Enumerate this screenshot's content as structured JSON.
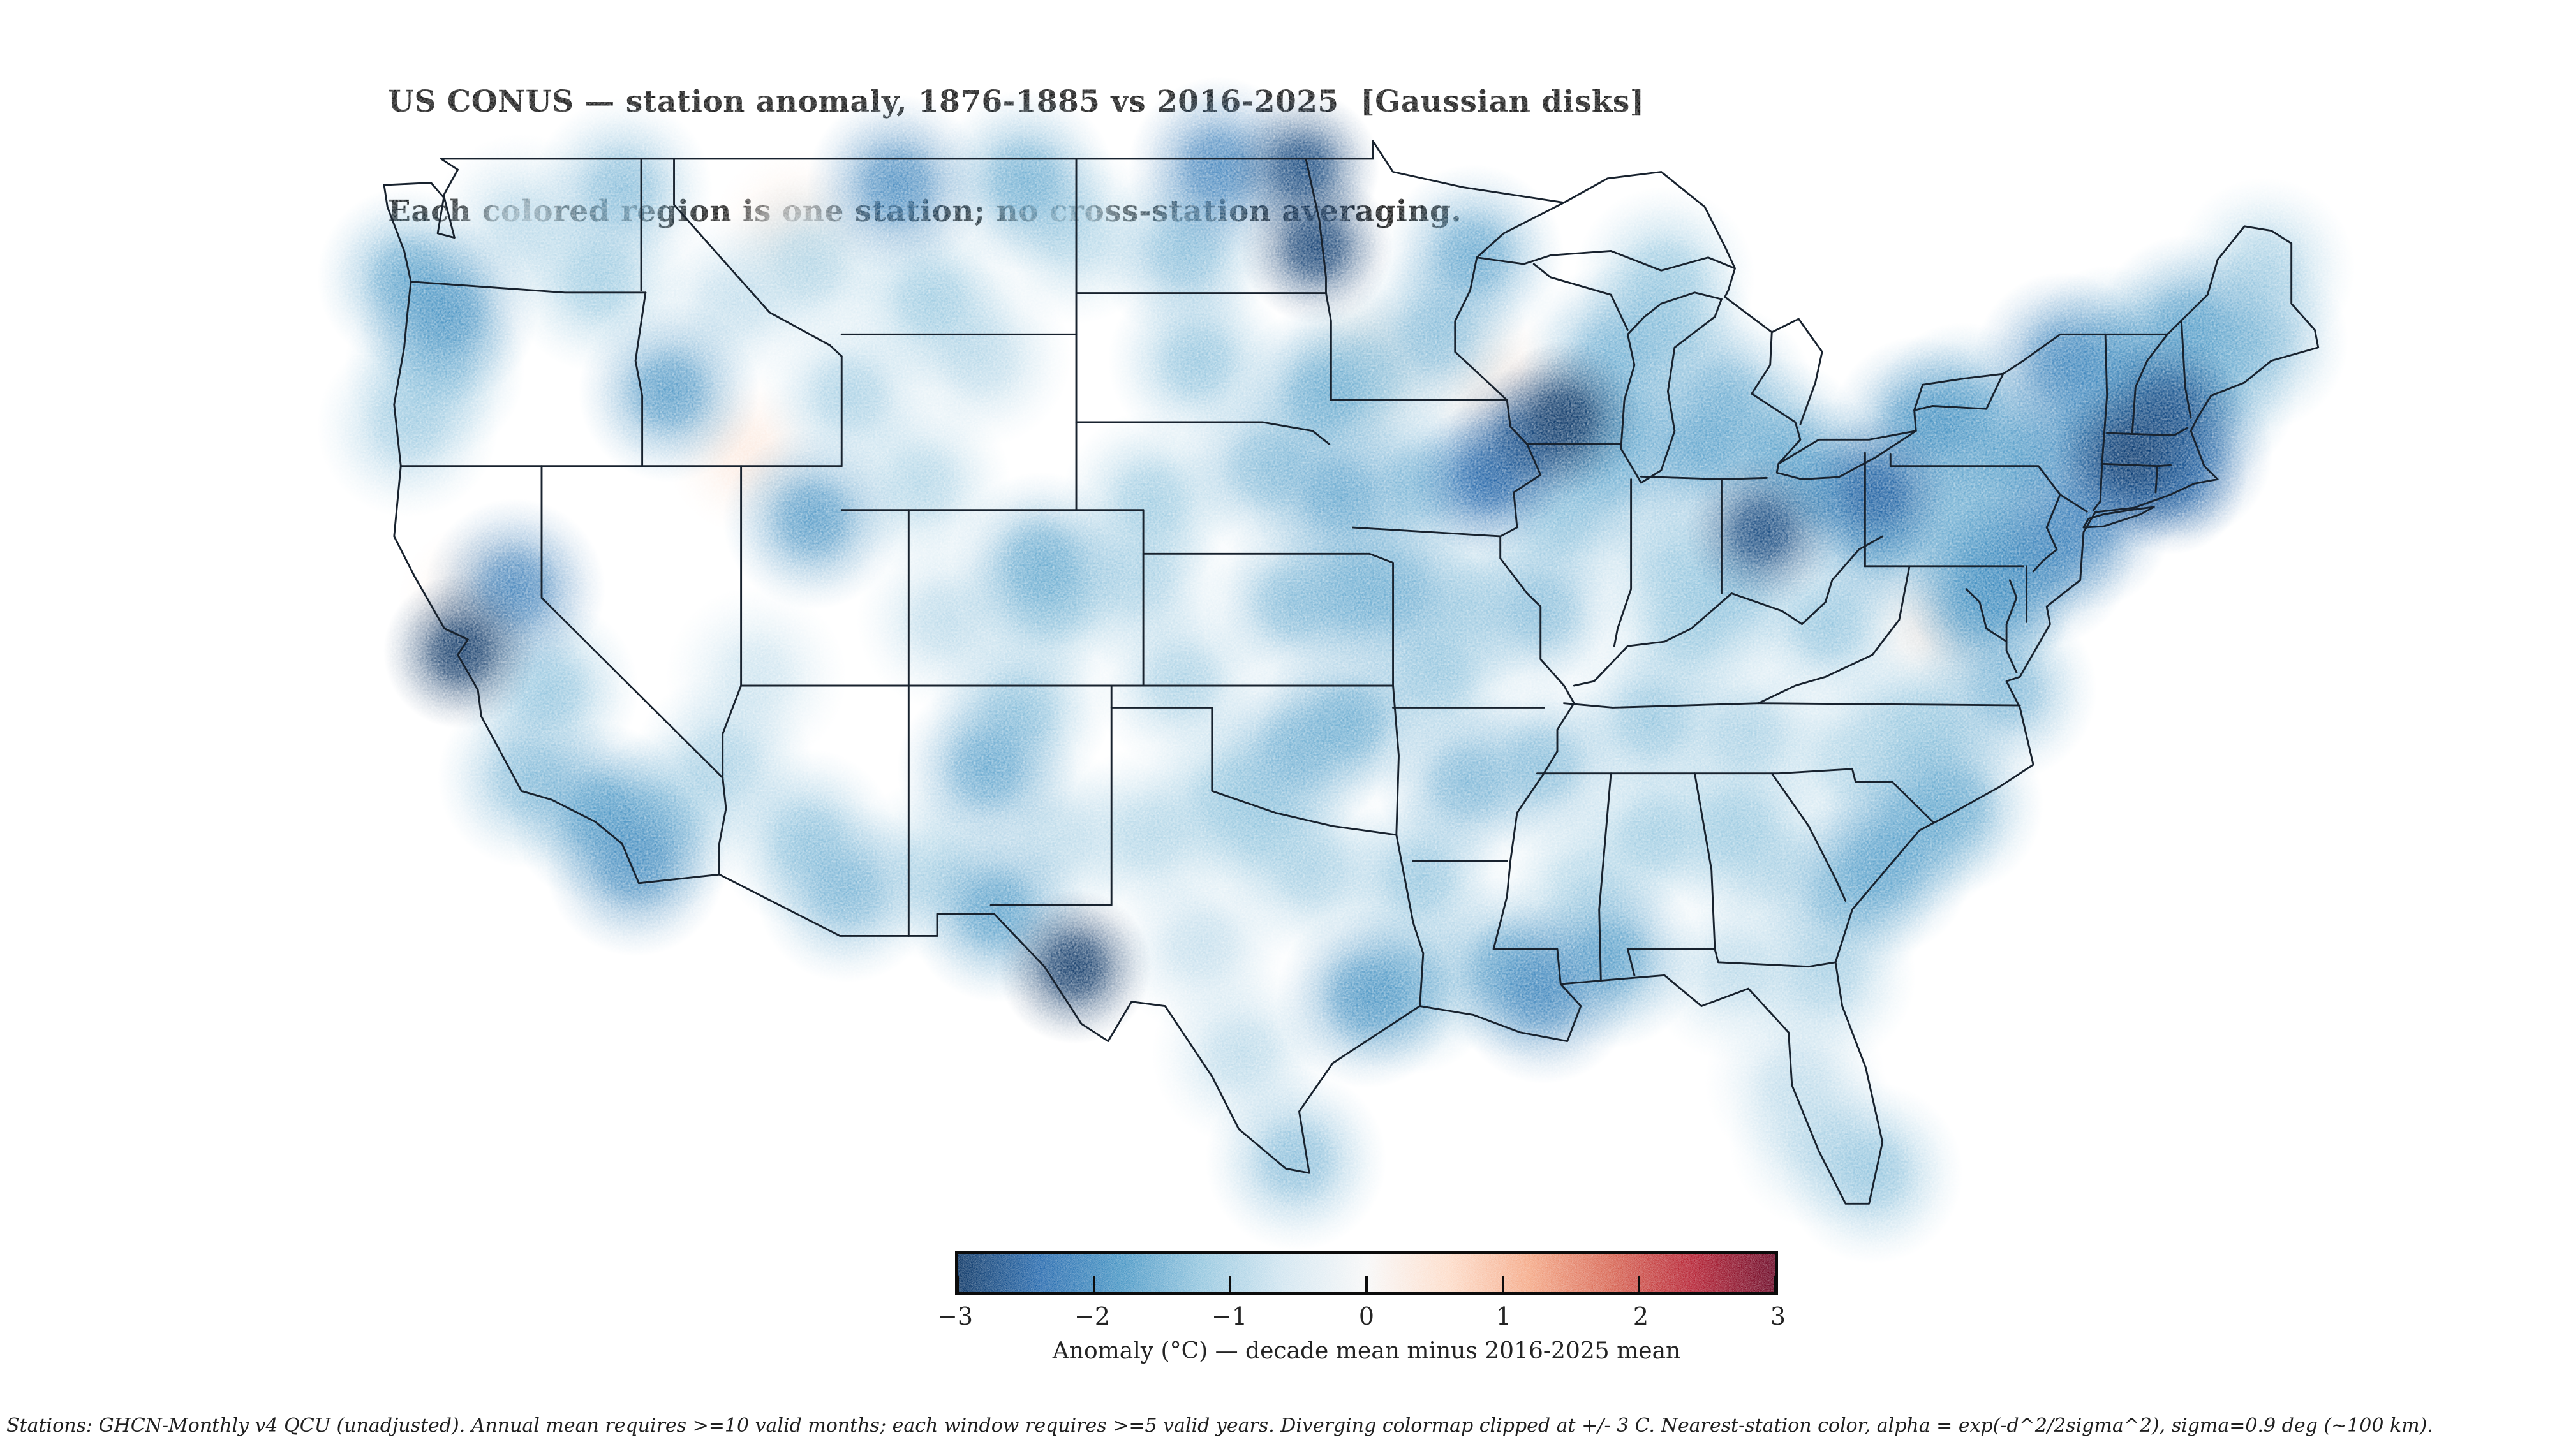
{
  "title": {
    "line1": "US CONUS — station anomaly, 1876-1885 vs 2016-2025  [Gaussian disks]",
    "line2": "Each colored region is one station; no cross-station averaging."
  },
  "colorbar": {
    "label": "Anomaly (°C) — decade mean minus 2016-2025 mean",
    "tick_values": [
      -3,
      -2,
      -1,
      0,
      1,
      2,
      3
    ],
    "tick_labels": [
      "−3",
      "−2",
      "−1",
      "0",
      "1",
      "2",
      "3"
    ],
    "vmin": -3,
    "vmax": 3,
    "gradient_stops": [
      "#053061",
      "#2166ac",
      "#4393c3",
      "#92c5de",
      "#d1e5f0",
      "#f7f7f7",
      "#fddbc7",
      "#f4a582",
      "#d6604d",
      "#b2182b",
      "#67001f"
    ],
    "border_color": "#0c0c0c"
  },
  "footnote": {
    "text": "Stations: GHCN-Monthly v4 QCU (unadjusted). Annual mean requires >=10 valid months; each window requires >=5 valid years. Diverging colormap clipped at +/- 3 C. Nearest-station color, alpha = exp(-d^2/2sigma^2), sigma=0.9 deg (~100 km)."
  },
  "chart_data": {
    "type": "heatmap",
    "subtype": "geo-station-gaussian-disks",
    "region": "US CONUS",
    "title": "US CONUS — station anomaly, 1876-1885 vs 2016-2025 [Gaussian disks]",
    "baseline_period": "1876-1885",
    "reference_period": "2016-2025",
    "units": "°C",
    "colormap": "RdBu diverging, clipped at +/- 3 C",
    "sigma_deg": 0.9,
    "legend_position": "bottom-center",
    "outline_color": "#18222e",
    "stations_format": [
      "lon",
      "lat",
      "anomaly_c"
    ],
    "stations": [
      [
        -124.0,
        46.3,
        -1.6
      ],
      [
        -122.8,
        45.5,
        -1.9
      ],
      [
        -123.2,
        44.2,
        -1.3
      ],
      [
        -124.0,
        42.9,
        -1.1
      ],
      [
        -120.6,
        47.5,
        -0.9
      ],
      [
        -117.6,
        48.3,
        -1.4
      ],
      [
        -118.3,
        46.2,
        -1.2
      ],
      [
        -116.2,
        43.7,
        -1.9
      ],
      [
        -114.3,
        45.7,
        -0.8
      ],
      [
        -112.0,
        46.6,
        -1.0
      ],
      [
        -112.5,
        47.4,
        0.35
      ],
      [
        -109.4,
        48.4,
        -2.1
      ],
      [
        -108.4,
        45.8,
        -1.2
      ],
      [
        -105.6,
        48.5,
        -1.6
      ],
      [
        -104.1,
        47.3,
        -1.0
      ],
      [
        -106.9,
        44.5,
        -0.9
      ],
      [
        -108.7,
        41.6,
        -1.0
      ],
      [
        -110.8,
        43.6,
        -1.1
      ],
      [
        -122.42,
        37.78,
        -3.0
      ],
      [
        -121.9,
        38.9,
        0.4
      ],
      [
        -120.8,
        39.2,
        -2.2
      ],
      [
        -119.8,
        36.9,
        -1.3
      ],
      [
        -120.4,
        34.9,
        -1.4
      ],
      [
        -118.3,
        34.1,
        -1.8
      ],
      [
        -117.2,
        32.9,
        -2.0
      ],
      [
        -116.4,
        33.9,
        -1.3
      ],
      [
        -114.6,
        35.2,
        -1.1
      ],
      [
        -112.1,
        33.5,
        -1.3
      ],
      [
        -110.9,
        32.3,
        -1.5
      ],
      [
        -108.3,
        32.8,
        -1.0
      ],
      [
        -106.7,
        35.1,
        -1.7
      ],
      [
        -104.6,
        33.5,
        -0.9
      ],
      [
        -113.6,
        37.2,
        -0.7
      ],
      [
        -111.9,
        40.8,
        -1.9
      ],
      [
        -113.9,
        42.3,
        0.4
      ],
      [
        -105.1,
        39.8,
        -1.6
      ],
      [
        -104.8,
        38.9,
        -1.2
      ],
      [
        -107.9,
        38.5,
        -0.9
      ],
      [
        -105.7,
        36.5,
        -1.3
      ],
      [
        -102.2,
        39.4,
        -1.1
      ],
      [
        -100.8,
        46.9,
        -1.4
      ],
      [
        -97.3,
        48.8,
        -2.8
      ],
      [
        -96.9,
        47.0,
        -2.9
      ],
      [
        -99.8,
        48.8,
        -2.2
      ],
      [
        -100.4,
        44.4,
        -1.3
      ],
      [
        -96.7,
        43.6,
        -1.6
      ],
      [
        -98.4,
        42.0,
        -1.4
      ],
      [
        -96.2,
        41.3,
        -1.7
      ],
      [
        -101.8,
        41.2,
        -1.2
      ],
      [
        -97.6,
        38.9,
        -1.4
      ],
      [
        -95.7,
        39.1,
        -1.5
      ],
      [
        -100.9,
        37.1,
        -1.1
      ],
      [
        -97.5,
        35.5,
        -1.5
      ],
      [
        -95.9,
        36.2,
        -1.6
      ],
      [
        -99.4,
        34.5,
        -1.2
      ],
      [
        -104.1,
        30.6,
        -3.0
      ],
      [
        -106.4,
        31.85,
        -1.8
      ],
      [
        -101.8,
        33.6,
        -1.0
      ],
      [
        -98.5,
        33.9,
        -1.2
      ],
      [
        -97.0,
        32.8,
        -1.1
      ],
      [
        -95.4,
        29.9,
        -1.9
      ],
      [
        -97.5,
        26.2,
        -1.4
      ],
      [
        -99.1,
        28.6,
        -0.9
      ],
      [
        -94.1,
        30.2,
        -1.4
      ],
      [
        -100.3,
        31.1,
        -0.8
      ],
      [
        -93.3,
        45.0,
        -1.4
      ],
      [
        -92.2,
        46.8,
        -1.7
      ],
      [
        -95.3,
        44.3,
        0.3
      ],
      [
        -91.6,
        43.9,
        0.3
      ],
      [
        -89.5,
        43.1,
        -3.0
      ],
      [
        -90.7,
        42.5,
        -2.6
      ],
      [
        -91.8,
        41.7,
        -2.4
      ],
      [
        -93.7,
        41.6,
        -1.5
      ],
      [
        -95.5,
        44.0,
        -1.2
      ],
      [
        -88.0,
        43.0,
        -1.6
      ],
      [
        -88.1,
        44.5,
        -1.5
      ],
      [
        -89.7,
        40.8,
        -1.3
      ],
      [
        -88.3,
        41.9,
        -1.5
      ],
      [
        -86.3,
        39.9,
        -1.1
      ],
      [
        -85.5,
        42.3,
        -1.7
      ],
      [
        -84.7,
        43.6,
        -1.5
      ],
      [
        -86.5,
        45.1,
        -1.3
      ],
      [
        -86.5,
        46.3,
        -1.2
      ],
      [
        -83.1,
        42.4,
        -1.6
      ],
      [
        -83.6,
        40.5,
        -2.8
      ],
      [
        -81.7,
        41.5,
        -1.9
      ],
      [
        -80.2,
        41.4,
        -2.5
      ],
      [
        -84.5,
        39.2,
        -1.3
      ],
      [
        -85.8,
        38.3,
        -1.2
      ],
      [
        -90.2,
        38.7,
        -1.4
      ],
      [
        -94.6,
        39.2,
        -1.5
      ],
      [
        -92.4,
        38.9,
        -1.1
      ],
      [
        -93.3,
        37.3,
        -1.3
      ],
      [
        -90.1,
        35.2,
        -1.4
      ],
      [
        -86.9,
        36.2,
        -1.3
      ],
      [
        -84.0,
        35.9,
        -1.1
      ],
      [
        -86.8,
        33.6,
        -1.2
      ],
      [
        -88.1,
        30.8,
        -1.8
      ],
      [
        -90.1,
        30.0,
        -2.1
      ],
      [
        -91.2,
        30.6,
        -1.6
      ],
      [
        -93.8,
        32.6,
        -1.3
      ],
      [
        -92.4,
        34.8,
        -1.5
      ],
      [
        -84.4,
        33.8,
        -1.2
      ],
      [
        -81.1,
        32.2,
        -1.4
      ],
      [
        -80.0,
        32.9,
        -1.7
      ],
      [
        -79.0,
        33.8,
        -1.5
      ],
      [
        -81.7,
        30.4,
        -1.1
      ],
      [
        -80.3,
        25.9,
        -1.3
      ],
      [
        -81.9,
        26.7,
        -0.9
      ],
      [
        -82.6,
        28.0,
        -0.8
      ],
      [
        -84.4,
        30.5,
        -0.9
      ],
      [
        -88.9,
        32.4,
        -1.0
      ],
      [
        -83.3,
        32.9,
        -0.9
      ],
      [
        -77.05,
        38.9,
        -1.7
      ],
      [
        -76.7,
        39.3,
        -1.9
      ],
      [
        -75.2,
        39.95,
        -2.0
      ],
      [
        -74.05,
        40.75,
        -2.2
      ],
      [
        -78.3,
        38.4,
        0.3
      ],
      [
        -79.4,
        36.1,
        -0.8
      ],
      [
        -76.3,
        36.9,
        -1.5
      ],
      [
        -77.9,
        34.3,
        -1.6
      ],
      [
        -78.7,
        35.9,
        -1.2
      ],
      [
        -80.9,
        35.25,
        -1.0
      ],
      [
        -81.6,
        38.4,
        -1.3
      ],
      [
        -80.0,
        40.45,
        -1.8
      ],
      [
        -78.85,
        42.9,
        -1.9
      ],
      [
        -77.6,
        43.2,
        -1.7
      ],
      [
        -75.9,
        42.15,
        -1.8
      ],
      [
        -73.8,
        42.7,
        -2.0
      ],
      [
        -74.6,
        44.35,
        -2.1
      ],
      [
        -72.6,
        42.25,
        -2.9
      ],
      [
        -71.5,
        43.25,
        -2.7
      ],
      [
        -71.05,
        42.35,
        -2.3
      ],
      [
        -72.7,
        41.8,
        -2.4
      ],
      [
        -71.4,
        41.75,
        -2.5
      ],
      [
        -70.3,
        43.7,
        -1.6
      ],
      [
        -68.8,
        44.85,
        -1.4
      ],
      [
        -70.9,
        45.2,
        -1.8
      ],
      [
        -68.6,
        46.5,
        -1.1
      ],
      [
        -73.2,
        44.5,
        -1.5
      ],
      [
        -72.3,
        43.7,
        -1.9
      ],
      [
        -76.9,
        40.3,
        -1.5
      ],
      [
        -77.9,
        41.2,
        -1.4
      ]
    ]
  }
}
